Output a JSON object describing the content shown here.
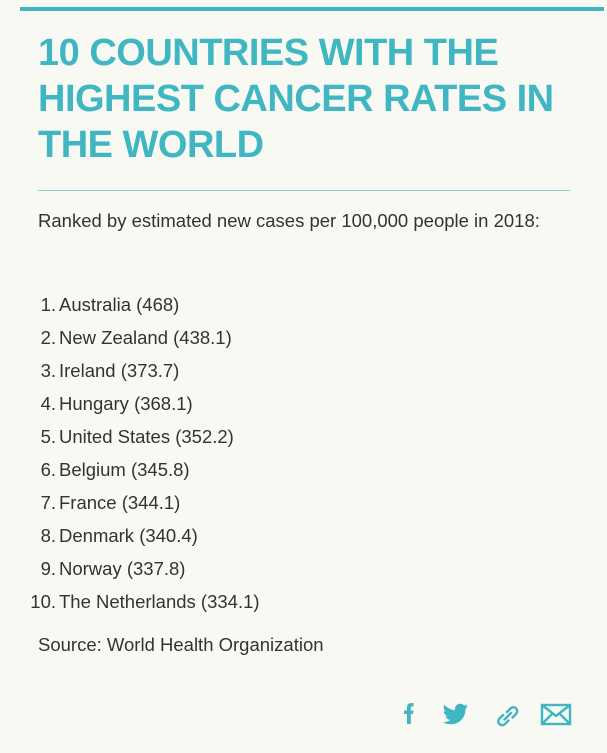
{
  "header": {
    "title": "10 COUNTRIES WITH THE HIGHEST CANCER RATES IN THE WORLD",
    "subtitle": "Ranked by estimated new cases per 100,000 people in 2018:"
  },
  "list": [
    {
      "rank": "1.",
      "text": "Australia (468)"
    },
    {
      "rank": "2.",
      "text": "New Zealand (438.1)"
    },
    {
      "rank": "3.",
      "text": "Ireland (373.7)"
    },
    {
      "rank": "4.",
      "text": "Hungary (368.1)"
    },
    {
      "rank": "5.",
      "text": "United States (352.2)"
    },
    {
      "rank": "6.",
      "text": "Belgium (345.8)"
    },
    {
      "rank": "7.",
      "text": "France (344.1)"
    },
    {
      "rank": "8.",
      "text": "Denmark (340.4)"
    },
    {
      "rank": "9.",
      "text": "Norway (337.8)"
    },
    {
      "rank": "10.",
      "text": "The Netherlands (334.1)"
    }
  ],
  "source": "Source: World Health Organization"
}
